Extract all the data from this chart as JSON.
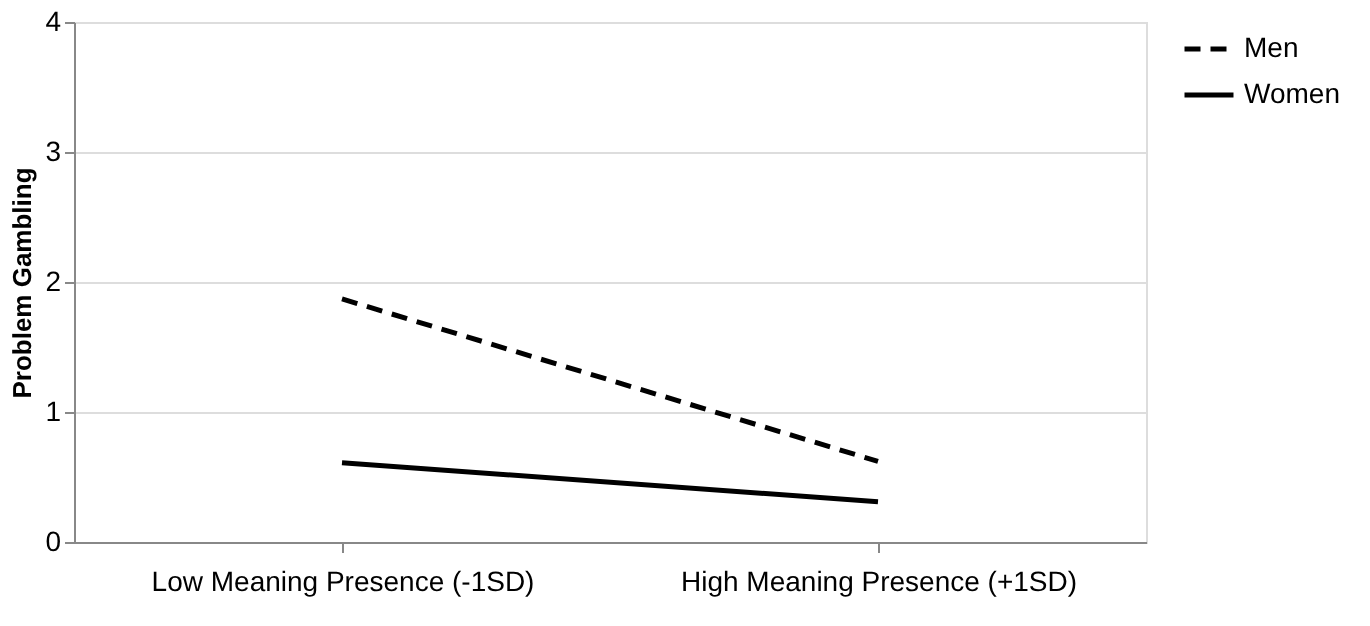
{
  "chart_data": {
    "type": "line",
    "ylabel": "Problem Gambling",
    "categories": [
      "Low Meaning Presence (-1SD)",
      "High Meaning Presence (+1SD)"
    ],
    "series": [
      {
        "name": "Men",
        "color": "#000000",
        "line_style": "dashed",
        "values": [
          1.87,
          0.62
        ]
      },
      {
        "name": "Women",
        "color": "#000000",
        "line_style": "solid",
        "values": [
          0.61,
          0.31
        ]
      }
    ],
    "ylim": [
      0,
      4
    ],
    "yticks": [
      0,
      1,
      2,
      3,
      4
    ],
    "grid": "y",
    "legend": "right",
    "marker": "none"
  }
}
